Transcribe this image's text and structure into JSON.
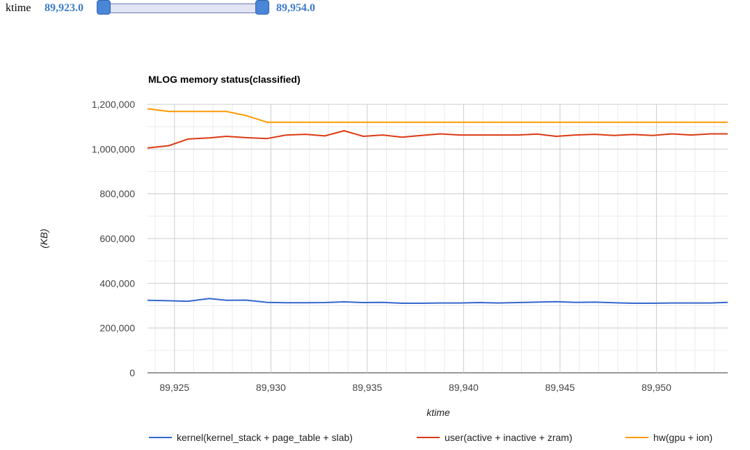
{
  "range_filter": {
    "label": "ktime",
    "min_text": "89,923.0",
    "max_text": "89,954.0",
    "min": 89923.0,
    "max": 89954.0
  },
  "colors": {
    "kernel": "#3366cc",
    "user": "#dc3912",
    "hw": "#ff9900",
    "grid_major": "#cccccc",
    "grid_minor": "#ebebeb"
  },
  "chart_data": {
    "type": "line",
    "title": "MLOG memory status(classified)",
    "xlabel": "ktime",
    "ylabel": "(KB)",
    "xlim": [
      89923.6,
      89953.7
    ],
    "ylim": [
      0,
      1200000
    ],
    "x_ticks": [
      89925,
      89930,
      89935,
      89940,
      89945,
      89950
    ],
    "x_tick_labels": [
      "89,925",
      "89,930",
      "89,935",
      "89,940",
      "89,945",
      "89,950"
    ],
    "y_ticks": [
      0,
      200000,
      400000,
      600000,
      800000,
      1000000,
      1200000
    ],
    "y_tick_labels": [
      "0",
      "200,000",
      "400,000",
      "600,000",
      "800,000",
      "1,000,000",
      "1,200,000"
    ],
    "grid": true,
    "legend_position": "bottom",
    "x": [
      89923.6,
      89924.7,
      89925.7,
      89926.8,
      89927.7,
      89928.7,
      89929.8,
      89930.8,
      89931.8,
      89932.8,
      89933.8,
      89934.8,
      89935.8,
      89936.8,
      89937.8,
      89938.8,
      89939.8,
      89940.8,
      89941.8,
      89942.8,
      89943.8,
      89944.8,
      89945.8,
      89946.8,
      89947.8,
      89948.8,
      89949.8,
      89950.8,
      89951.8,
      89952.8,
      89953.7
    ],
    "series": [
      {
        "name": "kernel(kernel_stack + page_table + slab)",
        "values": [
          324000,
          322000,
          320000,
          332000,
          324000,
          325000,
          315000,
          313000,
          313000,
          314000,
          317000,
          314000,
          315000,
          311000,
          311000,
          312000,
          312000,
          314000,
          312000,
          314000,
          316000,
          318000,
          315000,
          316000,
          313000,
          311000,
          311000,
          312000,
          312000,
          312000,
          315000
        ]
      },
      {
        "name": "user(active + inactive + zram)",
        "values": [
          1005000,
          1015000,
          1045000,
          1050000,
          1057000,
          1051000,
          1047000,
          1063000,
          1066000,
          1059000,
          1082000,
          1057000,
          1063000,
          1053000,
          1061000,
          1068000,
          1063000,
          1063000,
          1063000,
          1063000,
          1067000,
          1057000,
          1063000,
          1066000,
          1061000,
          1065000,
          1061000,
          1068000,
          1063000,
          1068000,
          1068000
        ]
      },
      {
        "name": "hw(gpu + ion)",
        "values": [
          1180000,
          1168000,
          1168000,
          1168000,
          1168000,
          1150000,
          1120000,
          1120000,
          1120000,
          1120000,
          1120000,
          1120000,
          1120000,
          1120000,
          1120000,
          1120000,
          1120000,
          1120000,
          1120000,
          1120000,
          1120000,
          1120000,
          1120000,
          1120000,
          1120000,
          1120000,
          1120000,
          1120000,
          1120000,
          1120000,
          1120000
        ]
      }
    ]
  }
}
